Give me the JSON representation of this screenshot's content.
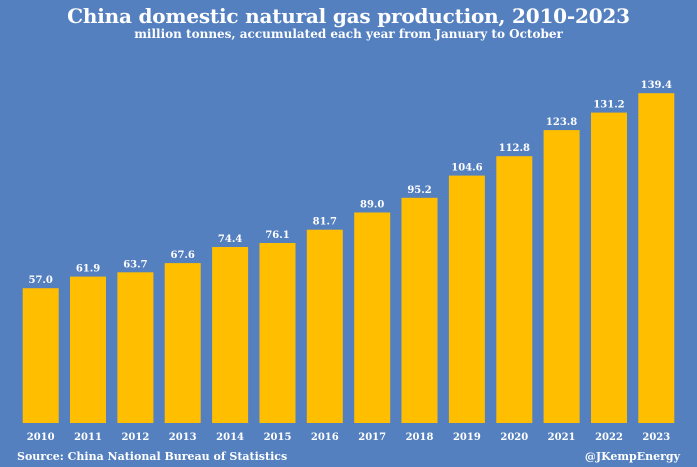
{
  "chart_data": {
    "type": "bar",
    "title": "China domestic natural gas production, 2010-2023",
    "subtitle": "million tonnes, accumulated each year from January to October",
    "categories": [
      "2010",
      "2011",
      "2012",
      "2013",
      "2014",
      "2015",
      "2016",
      "2017",
      "2018",
      "2019",
      "2020",
      "2021",
      "2022",
      "2023"
    ],
    "values": [
      57.0,
      61.9,
      63.7,
      67.6,
      74.4,
      76.1,
      81.7,
      89.0,
      95.2,
      104.6,
      112.8,
      123.8,
      131.2,
      139.4
    ],
    "labels": [
      "57.0",
      "61.9",
      "63.7",
      "67.6",
      "74.4",
      "76.1",
      "81.7",
      "89.0",
      "95.2",
      "104.6",
      "112.8",
      "123.8",
      "131.2",
      "139.4"
    ],
    "xlabel": "",
    "ylabel": "",
    "ylim": [
      0,
      145
    ],
    "grid": false,
    "legend": "none",
    "bar_color": "#ffbf00",
    "background": "#5580bf"
  },
  "footer": {
    "source": "Source: China National Bureau of Statistics",
    "credit": "@JKempEnergy"
  }
}
